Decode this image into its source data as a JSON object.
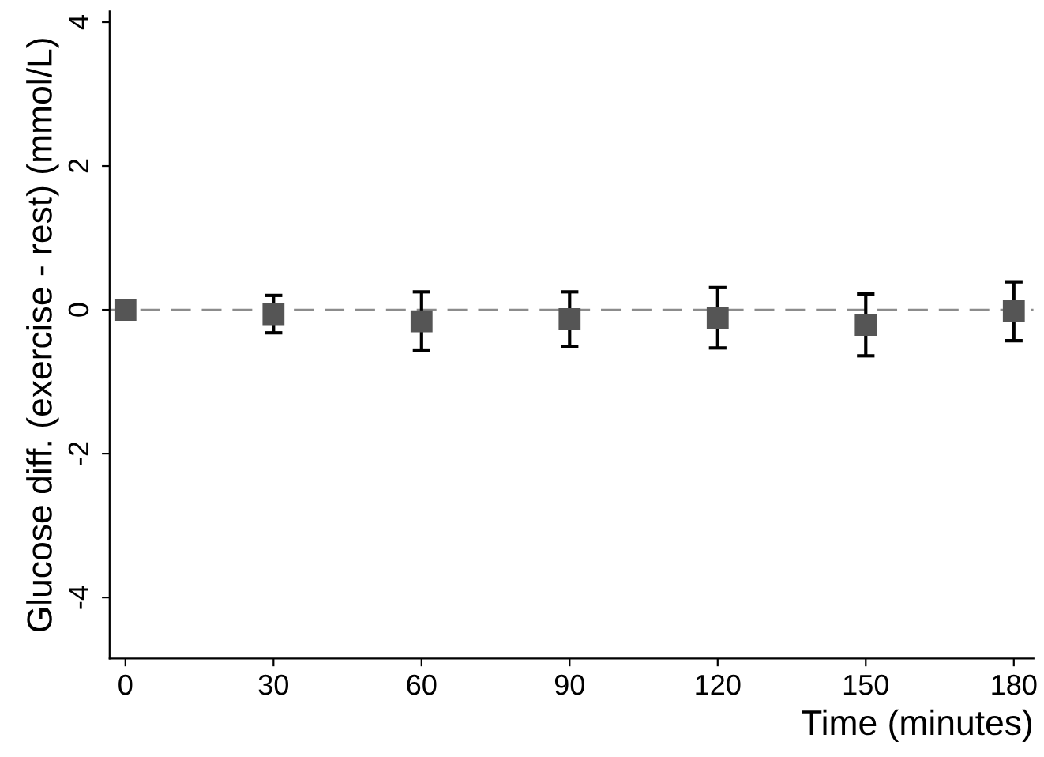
{
  "chart_data": {
    "type": "scatter",
    "xlabel": "Time (minutes)",
    "ylabel": "Glucose diff. (exercise - rest) (mmol/L)",
    "x": [
      0,
      30,
      60,
      90,
      120,
      150,
      180
    ],
    "series": [
      {
        "color": "#555555",
        "values": [
          0,
          -0.06,
          -0.16,
          -0.13,
          -0.11,
          -0.21,
          -0.02
        ],
        "errors": [
          null,
          0.26,
          0.41,
          0.38,
          0.42,
          0.43,
          0.41
        ]
      }
    ],
    "marker": "square",
    "xlim": [
      -3.2,
      184
    ],
    "ylim": [
      -4.85,
      4.15
    ],
    "xticks": [
      0,
      30,
      60,
      90,
      120,
      150,
      180
    ],
    "yticks": [
      -4,
      -2,
      0,
      2,
      4
    ],
    "ref_lines": [
      {
        "axis": "y",
        "value": 0,
        "color": "#8c8c8c",
        "line_style": "dashed"
      }
    ],
    "grid": false,
    "legend": false
  }
}
